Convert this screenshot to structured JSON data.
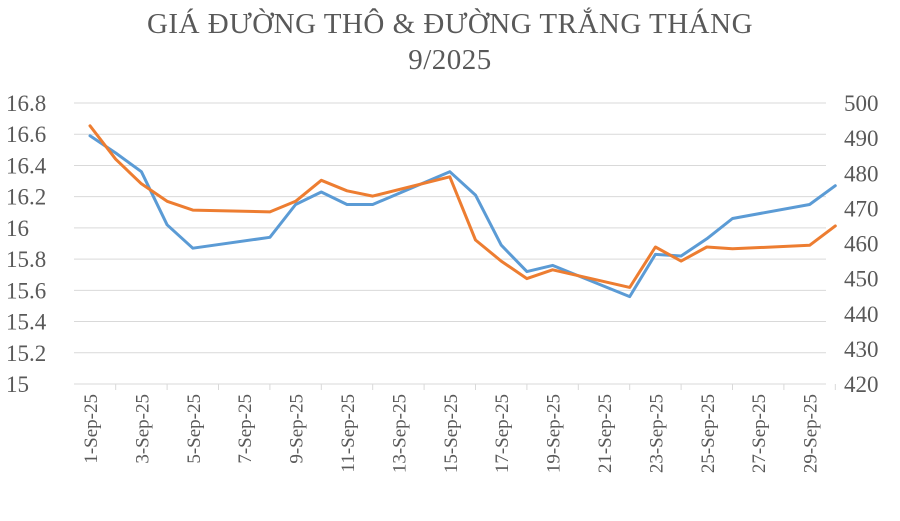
{
  "chart_data": {
    "type": "line",
    "title_lines": [
      "GIÁ ĐƯỜNG THÔ & ĐƯỜNG TRẮNG THÁNG",
      "9/2025"
    ],
    "xlabel": "",
    "ylabel": "",
    "ylim_left": [
      15,
      16.8
    ],
    "ylim_right": [
      420,
      500
    ],
    "y_ticks_left": [
      "16.8",
      "16.6",
      "16.4",
      "16.2",
      "16",
      "15.8",
      "15.6",
      "15.4",
      "15.2",
      "15"
    ],
    "y_ticks_right": [
      "500",
      "490",
      "480",
      "470",
      "460",
      "450",
      "440",
      "430",
      "420"
    ],
    "x_tick_labels": [
      "1-Sep-25",
      "3-Sep-25",
      "5-Sep-25",
      "7-Sep-25",
      "9-Sep-25",
      "11-Sep-25",
      "13-Sep-25",
      "15-Sep-25",
      "17-Sep-25",
      "19-Sep-25",
      "21-Sep-25",
      "23-Sep-25",
      "25-Sep-25",
      "27-Sep-25",
      "29-Sep-25"
    ],
    "x": [
      "1-Sep-25",
      "2-Sep-25",
      "3-Sep-25",
      "4-Sep-25",
      "5-Sep-25",
      "8-Sep-25",
      "9-Sep-25",
      "10-Sep-25",
      "11-Sep-25",
      "12-Sep-25",
      "15-Sep-25",
      "16-Sep-25",
      "17-Sep-25",
      "18-Sep-25",
      "19-Sep-25",
      "22-Sep-25",
      "23-Sep-25",
      "24-Sep-25",
      "25-Sep-25",
      "26-Sep-25",
      "29-Sep-25",
      "30-Sep-25"
    ],
    "series": [
      {
        "axis": "left",
        "color": "#5b9bd5",
        "values": [
          16.59,
          16.48,
          16.36,
          16.02,
          15.87,
          15.94,
          16.15,
          16.23,
          16.15,
          16.15,
          16.36,
          16.21,
          15.89,
          15.72,
          15.76,
          15.56,
          15.83,
          15.82,
          15.93,
          16.06,
          16.15,
          16.27
        ]
      },
      {
        "axis": "right",
        "color": "#ed7d31",
        "values": [
          493.5,
          484.0,
          477.0,
          472.0,
          469.5,
          469.0,
          472.0,
          478.0,
          475.0,
          473.5,
          479.0,
          461.0,
          455.0,
          450.0,
          452.5,
          447.5,
          459.0,
          455.0,
          459.0,
          458.5,
          459.5,
          465.0
        ]
      }
    ]
  }
}
